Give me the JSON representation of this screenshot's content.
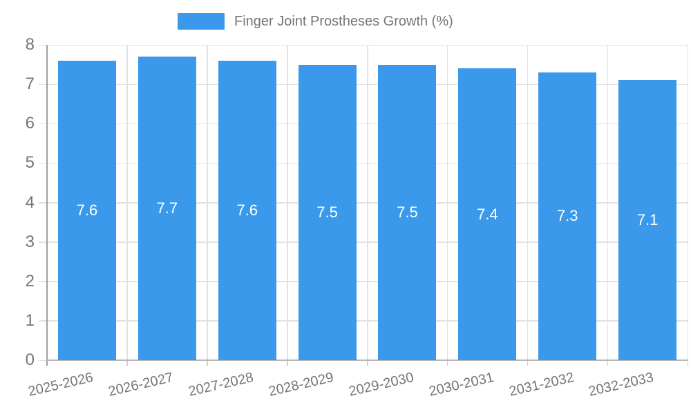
{
  "legend": {
    "label": "Finger Joint Prostheses Growth (%)"
  },
  "chart_data": {
    "type": "bar",
    "title": "Finger Joint Prostheses Growth (%)",
    "categories": [
      "2025-2026",
      "2026-2027",
      "2027-2028",
      "2028-2029",
      "2029-2030",
      "2030-2031",
      "2031-2032",
      "2032-2033"
    ],
    "values": [
      7.6,
      7.7,
      7.6,
      7.5,
      7.5,
      7.4,
      7.3,
      7.1
    ],
    "value_labels": [
      "7.6",
      "7.7",
      "7.6",
      "7.5",
      "7.5",
      "7.4",
      "7.3",
      "7.1"
    ],
    "xlabel": "",
    "ylabel": "",
    "ylim": [
      0,
      8
    ],
    "y_ticks": [
      0,
      1,
      2,
      3,
      4,
      5,
      6,
      7,
      8
    ],
    "grid": true,
    "legend_position": "top-center",
    "colors": {
      "bar": "#3b99ec",
      "bar_value_text": "#ffffff",
      "axis_text": "#757575",
      "gridline": "#e2e2e2",
      "y_axis_line": "#9e9e9e",
      "x_axis_line": "#b7b7b7",
      "tick": "#cfcfcf",
      "background": "#ffffff"
    }
  }
}
